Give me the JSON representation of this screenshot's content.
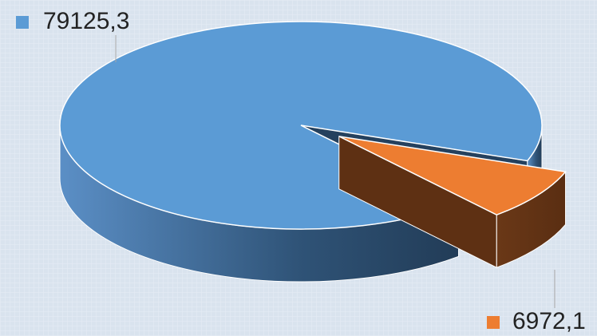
{
  "chart_data": {
    "type": "pie3d",
    "values": [
      79125.3,
      6972.1
    ],
    "value_labels": [
      "79125,3",
      "6972,1"
    ],
    "colors": [
      "#5b9bd5",
      "#ed7d31"
    ],
    "exploded": [
      false,
      true
    ]
  }
}
